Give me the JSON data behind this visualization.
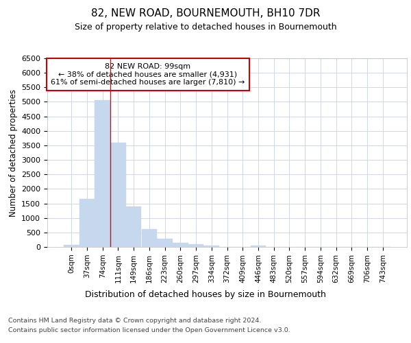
{
  "title": "82, NEW ROAD, BOURNEMOUTH, BH10 7DR",
  "subtitle": "Size of property relative to detached houses in Bournemouth",
  "xlabel": "Distribution of detached houses by size in Bournemouth",
  "ylabel": "Number of detached properties",
  "bar_color": "#c5d8ed",
  "bar_edge_color": "#c5d8ed",
  "background_color": "#ffffff",
  "grid_color": "#d0d8e8",
  "categories": [
    "0sqm",
    "37sqm",
    "74sqm",
    "111sqm",
    "149sqm",
    "186sqm",
    "223sqm",
    "260sqm",
    "297sqm",
    "334sqm",
    "372sqm",
    "409sqm",
    "446sqm",
    "483sqm",
    "520sqm",
    "557sqm",
    "594sqm",
    "632sqm",
    "669sqm",
    "706sqm",
    "743sqm"
  ],
  "values": [
    75,
    1650,
    5050,
    3600,
    1400,
    610,
    285,
    135,
    95,
    50,
    0,
    0,
    55,
    0,
    0,
    0,
    0,
    0,
    0,
    0,
    0
  ],
  "ylim": [
    0,
    6500
  ],
  "yticks": [
    0,
    500,
    1000,
    1500,
    2000,
    2500,
    3000,
    3500,
    4000,
    4500,
    5000,
    5500,
    6000,
    6500
  ],
  "annotation_line1": "82 NEW ROAD: 99sqm",
  "annotation_line2": "← 38% of detached houses are smaller (4,931)",
  "annotation_line3": "61% of semi-detached houses are larger (7,810) →",
  "annotation_box_color": "#ffffff",
  "annotation_box_edge": "#cc0000",
  "red_line_x": 2.5,
  "footer1": "Contains HM Land Registry data © Crown copyright and database right 2024.",
  "footer2": "Contains public sector information licensed under the Open Government Licence v3.0."
}
